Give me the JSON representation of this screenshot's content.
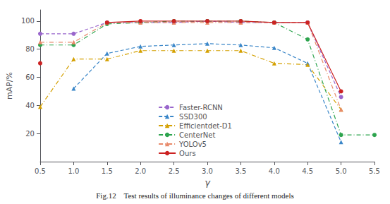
{
  "chart_data": {
    "type": "line",
    "title": "Fig.12    Test results of illuminance changes of different models",
    "xlabel": "γ",
    "ylabel": "mAP/%",
    "x": [
      0.5,
      1.0,
      1.5,
      2.0,
      2.5,
      3.0,
      3.5,
      4.0,
      4.5,
      5.0,
      5.5
    ],
    "series": [
      {
        "name": "Faster-RCNN",
        "color": "#9966cc",
        "line_style": "dashed",
        "marker": "circle",
        "values": [
          91,
          91,
          99,
          99,
          99,
          100,
          99,
          99,
          99,
          46,
          null
        ]
      },
      {
        "name": "SSD300",
        "color": "#3a86c8",
        "line_style": "dashed",
        "marker": "triangle",
        "values": [
          null,
          52,
          77,
          82,
          83,
          84,
          83,
          81,
          70,
          14,
          null
        ]
      },
      {
        "name": "Efficientdet-D1",
        "color": "#d4a000",
        "line_style": "dashdot",
        "marker": "triangle",
        "values": [
          39,
          73,
          73,
          79,
          79,
          79,
          79,
          70,
          69,
          37,
          null
        ]
      },
      {
        "name": "CenterNet",
        "color": "#2da44e",
        "line_style": "dashdot",
        "marker": "circle",
        "values": [
          83,
          83,
          98,
          99,
          100,
          100,
          100,
          99,
          87,
          19,
          19
        ]
      },
      {
        "name": "YOLOv5",
        "color": "#e8896a",
        "line_style": "dashdot",
        "marker": "triangle",
        "values": [
          85,
          85,
          99,
          99,
          99,
          99,
          99,
          99,
          99,
          37,
          null
        ]
      },
      {
        "name": "Ours",
        "color": "#cc2222",
        "line_style": "solid",
        "marker": "circle",
        "values": [
          70,
          null,
          99,
          100,
          100,
          100,
          100,
          99,
          99,
          50,
          null
        ]
      }
    ],
    "xlim": [
      0.5,
      5.5
    ],
    "xticks": [
      0.5,
      {
        "value": 1.0,
        "label": "1.0"
      },
      1.5,
      {
        "value": 2.0,
        "label": "2.0"
      },
      2.5,
      {
        "value": 3.0,
        "label": "3.0"
      },
      3.5,
      {
        "value": 4.0,
        "label": "4.0"
      },
      4.5,
      {
        "value": 5.0,
        "label": "5.0"
      },
      5.5
    ],
    "ylim": [
      0,
      108
    ],
    "yticks": [
      20,
      40,
      60,
      80,
      100
    ],
    "grid": false,
    "legend": "lower center"
  }
}
